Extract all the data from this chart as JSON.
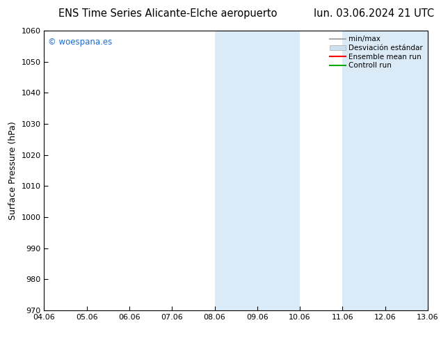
{
  "title_left": "ENS Time Series Alicante-Elche aeropuerto",
  "title_right": "lun. 03.06.2024 21 UTC",
  "ylabel": "Surface Pressure (hPa)",
  "ylim": [
    970,
    1060
  ],
  "yticks": [
    970,
    980,
    990,
    1000,
    1010,
    1020,
    1030,
    1040,
    1050,
    1060
  ],
  "x_tick_labels": [
    "04.06",
    "05.06",
    "06.06",
    "07.06",
    "08.06",
    "09.06",
    "10.06",
    "11.06",
    "12.06",
    "13.06"
  ],
  "x_tick_positions": [
    0,
    1,
    2,
    3,
    4,
    5,
    6,
    7,
    8,
    9
  ],
  "shaded_bands": [
    {
      "x_start": 4,
      "x_end": 5,
      "color": "#daeaf7"
    },
    {
      "x_start": 5,
      "x_end": 6,
      "color": "#daeaf7"
    },
    {
      "x_start": 7,
      "x_end": 8,
      "color": "#daeaf7"
    },
    {
      "x_start": 8,
      "x_end": 9,
      "color": "#daeaf7"
    }
  ],
  "watermark_text": "© woespana.es",
  "watermark_color": "#1a6bcc",
  "legend_items": [
    {
      "label": "min/max",
      "color": "#aaaaaa",
      "lw": 1.5,
      "style": "solid"
    },
    {
      "label": "Desviación estándar",
      "color": "#cce0f0",
      "lw": 8,
      "style": "solid"
    },
    {
      "label": "Ensemble mean run",
      "color": "#ff0000",
      "lw": 1.5,
      "style": "solid"
    },
    {
      "label": "Controll run",
      "color": "#00aa00",
      "lw": 1.5,
      "style": "solid"
    }
  ],
  "background_color": "#ffffff",
  "title_fontsize": 10.5,
  "tick_fontsize": 8,
  "ylabel_fontsize": 9,
  "watermark_fontsize": 8.5,
  "legend_fontsize": 7.5
}
